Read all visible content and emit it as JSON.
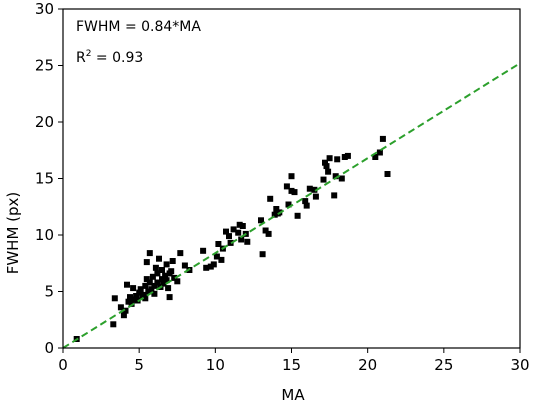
{
  "chart_data": {
    "type": "scatter",
    "xlabel": "MA",
    "ylabel": "FWHM (px)",
    "xlim": [
      0,
      30
    ],
    "ylim": [
      0,
      30
    ],
    "xticks": [
      "0",
      "5",
      "10",
      "15",
      "20",
      "25",
      "30"
    ],
    "yticks": [
      "0",
      "5",
      "10",
      "15",
      "20",
      "25",
      "30"
    ],
    "grid": false,
    "annotations": {
      "fit_label": "FWHM = 0.84*MA",
      "r2_prefix": "R",
      "r2_sup": "2",
      "r2_suffix": " = 0.93"
    },
    "fit_line": {
      "slope": 0.84,
      "intercept": 0,
      "color": "#2ca02c",
      "style": "dashed"
    },
    "marker_color": "#000000",
    "points": [
      [
        0.9,
        0.8
      ],
      [
        3.3,
        2.1
      ],
      [
        3.4,
        4.4
      ],
      [
        3.8,
        3.6
      ],
      [
        4.0,
        2.9
      ],
      [
        4.1,
        3.3
      ],
      [
        4.2,
        5.6
      ],
      [
        4.3,
        4.1
      ],
      [
        4.4,
        4.5
      ],
      [
        4.5,
        3.9
      ],
      [
        4.6,
        5.3
      ],
      [
        4.6,
        4.3
      ],
      [
        4.8,
        4.6
      ],
      [
        4.9,
        4.2
      ],
      [
        5.0,
        4.9
      ],
      [
        5.1,
        5.2
      ],
      [
        5.2,
        4.6
      ],
      [
        5.3,
        4.7
      ],
      [
        5.4,
        5.5
      ],
      [
        5.4,
        4.4
      ],
      [
        5.5,
        6.1
      ],
      [
        5.5,
        7.6
      ],
      [
        5.6,
        5.0
      ],
      [
        5.7,
        5.8
      ],
      [
        5.7,
        8.4
      ],
      [
        5.8,
        5.2
      ],
      [
        5.9,
        6.3
      ],
      [
        6.0,
        5.5
      ],
      [
        6.0,
        4.8
      ],
      [
        6.1,
        7.1
      ],
      [
        6.2,
        5.8
      ],
      [
        6.2,
        6.6
      ],
      [
        6.3,
        7.9
      ],
      [
        6.4,
        5.4
      ],
      [
        6.5,
        6.1
      ],
      [
        6.5,
        6.9
      ],
      [
        6.6,
        5.7
      ],
      [
        6.7,
        6.4
      ],
      [
        6.8,
        6.0
      ],
      [
        6.8,
        7.4
      ],
      [
        6.9,
        5.3
      ],
      [
        7.0,
        6.6
      ],
      [
        7.0,
        4.5
      ],
      [
        7.1,
        6.8
      ],
      [
        7.2,
        7.7
      ],
      [
        7.3,
        6.2
      ],
      [
        7.5,
        5.9
      ],
      [
        7.7,
        8.4
      ],
      [
        8.0,
        7.3
      ],
      [
        8.3,
        6.9
      ],
      [
        9.2,
        8.6
      ],
      [
        9.4,
        7.1
      ],
      [
        9.7,
        7.2
      ],
      [
        9.9,
        7.4
      ],
      [
        10.1,
        8.1
      ],
      [
        10.2,
        9.2
      ],
      [
        10.4,
        7.8
      ],
      [
        10.5,
        8.8
      ],
      [
        10.7,
        10.3
      ],
      [
        10.9,
        9.9
      ],
      [
        11.0,
        9.3
      ],
      [
        11.2,
        10.5
      ],
      [
        11.5,
        10.2
      ],
      [
        11.6,
        10.9
      ],
      [
        11.7,
        9.6
      ],
      [
        11.8,
        10.8
      ],
      [
        12.0,
        10.1
      ],
      [
        12.1,
        9.4
      ],
      [
        13.0,
        11.3
      ],
      [
        13.1,
        8.3
      ],
      [
        13.3,
        10.4
      ],
      [
        13.5,
        10.1
      ],
      [
        13.6,
        13.2
      ],
      [
        13.9,
        11.8
      ],
      [
        14.0,
        12.3
      ],
      [
        14.1,
        11.9
      ],
      [
        14.2,
        12.0
      ],
      [
        14.7,
        14.3
      ],
      [
        14.8,
        12.7
      ],
      [
        15.0,
        13.9
      ],
      [
        15.0,
        15.2
      ],
      [
        15.2,
        13.8
      ],
      [
        15.4,
        11.7
      ],
      [
        15.9,
        13.0
      ],
      [
        16.0,
        12.6
      ],
      [
        16.2,
        14.1
      ],
      [
        16.5,
        14.0
      ],
      [
        16.6,
        13.4
      ],
      [
        17.1,
        14.9
      ],
      [
        17.2,
        16.4
      ],
      [
        17.3,
        16.1
      ],
      [
        17.4,
        15.6
      ],
      [
        17.5,
        16.8
      ],
      [
        17.8,
        13.5
      ],
      [
        17.9,
        15.2
      ],
      [
        18.0,
        16.7
      ],
      [
        18.3,
        15.0
      ],
      [
        18.5,
        16.9
      ],
      [
        18.7,
        17.0
      ],
      [
        20.5,
        16.9
      ],
      [
        20.8,
        17.3
      ],
      [
        21.0,
        18.5
      ],
      [
        21.3,
        15.4
      ]
    ]
  }
}
